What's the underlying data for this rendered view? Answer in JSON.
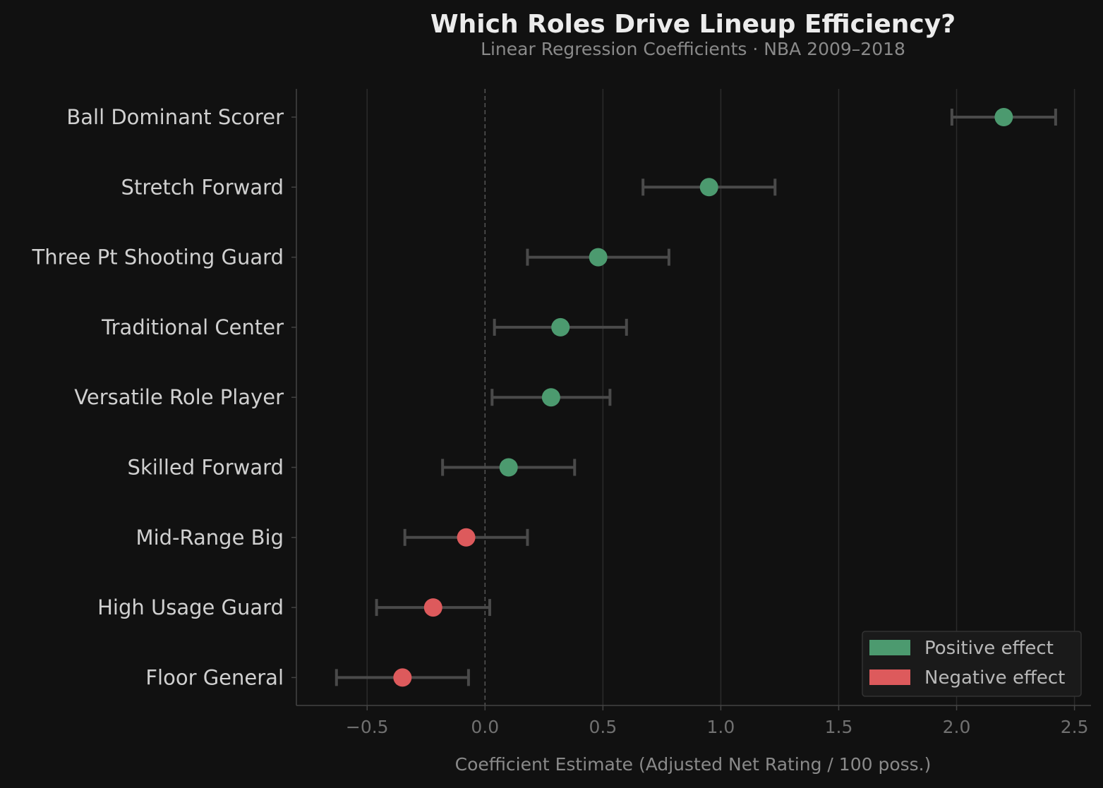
{
  "chart_data": {
    "type": "scatter",
    "title": "Which Roles Drive Lineup Efficiency?",
    "subtitle": "Linear Regression Coefficients  ·  NBA 2009–2018",
    "xlabel": "Coefficient Estimate  (Adjusted Net Rating / 100 poss.)",
    "ylabel": "",
    "xlim": [
      -0.8,
      2.57
    ],
    "xticks": [
      -0.5,
      0.0,
      0.5,
      1.0,
      1.5,
      2.0,
      2.5
    ],
    "xtick_labels": [
      "−0.5",
      "0.0",
      "0.5",
      "1.0",
      "1.5",
      "2.0",
      "2.5"
    ],
    "grid": "vertical",
    "reference_line": 0,
    "colors": {
      "positive": "#4c9a6f",
      "negative": "#dd5a5c",
      "errorbar": "#4a4a4a"
    },
    "categories": [
      {
        "label": "Ball Dominant Scorer",
        "estimate": 2.2,
        "ci_low": 1.98,
        "ci_high": 2.42
      },
      {
        "label": "Stretch Forward",
        "estimate": 0.95,
        "ci_low": 0.67,
        "ci_high": 1.23
      },
      {
        "label": "Three Pt Shooting Guard",
        "estimate": 0.48,
        "ci_low": 0.18,
        "ci_high": 0.78
      },
      {
        "label": "Traditional Center",
        "estimate": 0.32,
        "ci_low": 0.04,
        "ci_high": 0.6
      },
      {
        "label": "Versatile Role Player",
        "estimate": 0.28,
        "ci_low": 0.03,
        "ci_high": 0.53
      },
      {
        "label": "Skilled Forward",
        "estimate": 0.1,
        "ci_low": -0.18,
        "ci_high": 0.38
      },
      {
        "label": "Mid-Range Big",
        "estimate": -0.08,
        "ci_low": -0.34,
        "ci_high": 0.18
      },
      {
        "label": "High Usage Guard",
        "estimate": -0.22,
        "ci_low": -0.46,
        "ci_high": 0.02
      },
      {
        "label": "Floor General",
        "estimate": -0.35,
        "ci_low": -0.63,
        "ci_high": -0.07
      }
    ],
    "legend": {
      "position": "lower-right",
      "entries": [
        {
          "label": "Positive effect",
          "color": "#4c9a6f"
        },
        {
          "label": "Negative effect",
          "color": "#dd5a5c"
        }
      ]
    }
  }
}
